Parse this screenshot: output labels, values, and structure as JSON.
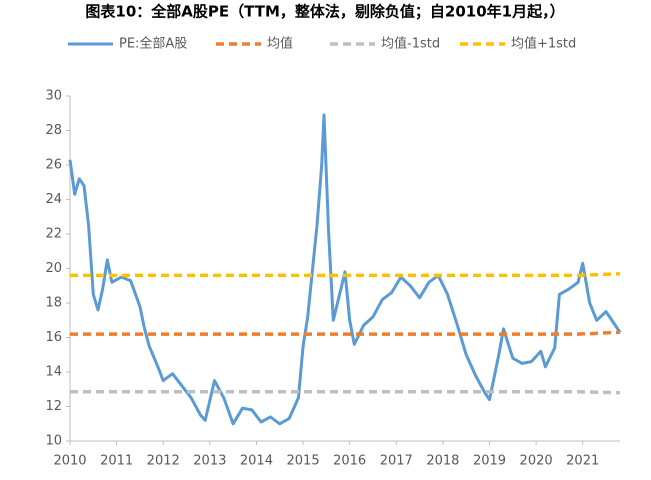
{
  "chart_data": {
    "type": "line",
    "title": "图表10：全部A股PE（TTM，整体法，剔除负值；自2010年1月起，）",
    "x": [
      2010.0,
      2010.1,
      2010.2,
      2010.3,
      2010.4,
      2010.5,
      2010.6,
      2010.7,
      2010.8,
      2010.9,
      2011.1,
      2011.3,
      2011.5,
      2011.6,
      2011.7,
      2011.9,
      2012.0,
      2012.2,
      2012.4,
      2012.6,
      2012.8,
      2012.9,
      2013.1,
      2013.3,
      2013.5,
      2013.7,
      2013.9,
      2014.1,
      2014.3,
      2014.5,
      2014.7,
      2014.9,
      2015.0,
      2015.1,
      2015.3,
      2015.4,
      2015.45,
      2015.55,
      2015.65,
      2015.9,
      2016.0,
      2016.1,
      2016.3,
      2016.5,
      2016.7,
      2016.9,
      2017.1,
      2017.3,
      2017.5,
      2017.7,
      2017.9,
      2018.1,
      2018.3,
      2018.5,
      2018.7,
      2018.9,
      2019.0,
      2019.2,
      2019.3,
      2019.5,
      2019.7,
      2019.9,
      2020.1,
      2020.2,
      2020.4,
      2020.5,
      2020.7,
      2020.9,
      2021.0,
      2021.15,
      2021.3,
      2021.5,
      2021.7,
      2021.8
    ],
    "series": [
      {
        "name": "PE:全部A股",
        "color": "#5b9bd5",
        "style": "solid",
        "values": [
          26.3,
          24.3,
          25.2,
          24.8,
          22.5,
          18.5,
          17.6,
          18.8,
          20.5,
          19.2,
          19.5,
          19.3,
          17.8,
          16.5,
          15.5,
          14.2,
          13.5,
          13.9,
          13.2,
          12.5,
          11.5,
          11.2,
          13.5,
          12.5,
          11.0,
          11.9,
          11.8,
          11.1,
          11.4,
          11.0,
          11.3,
          12.5,
          15.5,
          17.2,
          22.5,
          26.0,
          28.9,
          22.0,
          17.0,
          19.8,
          17.0,
          15.6,
          16.7,
          17.2,
          18.2,
          18.6,
          19.5,
          19.0,
          18.3,
          19.2,
          19.6,
          18.5,
          16.8,
          15.0,
          13.8,
          12.8,
          12.4,
          15.0,
          16.5,
          14.8,
          14.5,
          14.6,
          15.2,
          14.3,
          15.4,
          18.5,
          18.8,
          19.2,
          20.3,
          18.0,
          17.0,
          17.5,
          16.7,
          16.3
        ]
      },
      {
        "name": "均值",
        "color": "#ed7d31",
        "style": "dashed",
        "x": [
          2010.0,
          2020.9,
          2021.8
        ],
        "values": [
          16.2,
          16.2,
          16.3
        ]
      },
      {
        "name": "均值-1std",
        "color": "#bfbfbf",
        "style": "dashed",
        "x": [
          2010.0,
          2020.9,
          2021.8
        ],
        "values": [
          12.85,
          12.85,
          12.8
        ]
      },
      {
        "name": "均值+1std",
        "color": "#ffc000",
        "style": "dashed",
        "x": [
          2010.0,
          2020.9,
          2021.8
        ],
        "values": [
          19.6,
          19.6,
          19.7
        ]
      }
    ],
    "xlim": [
      2010,
      2021.8
    ],
    "xticks": [
      2010,
      2011,
      2012,
      2013,
      2014,
      2015,
      2016,
      2017,
      2018,
      2019,
      2020,
      2021
    ],
    "ylim": [
      10,
      30
    ],
    "yticks": [
      10,
      12,
      14,
      16,
      18,
      20,
      22,
      24,
      26,
      28,
      30
    ],
    "legend": "top"
  }
}
